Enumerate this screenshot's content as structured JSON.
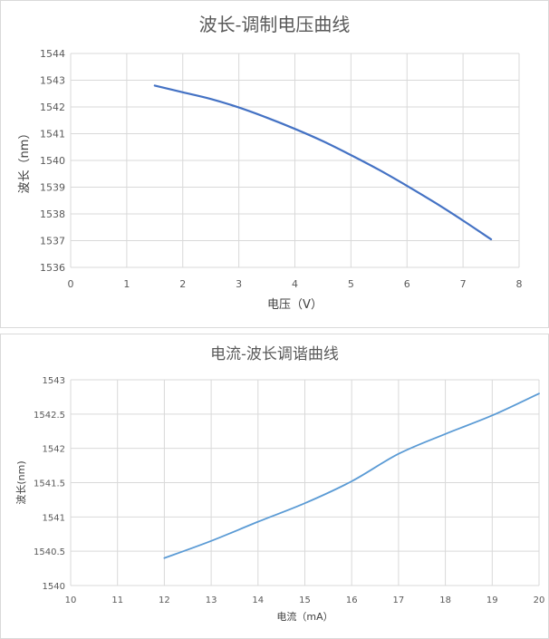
{
  "colors": {
    "line1": "#4472c4",
    "line2": "#5b9bd5",
    "grid": "#d9d9d9",
    "text": "#595959"
  },
  "chart_data": [
    {
      "type": "line",
      "title": "波长-调制电压曲线",
      "xlabel": "电压（V）",
      "ylabel": "波长（nm）",
      "xlim": [
        0,
        8
      ],
      "ylim": [
        1536,
        1544
      ],
      "x_ticks": [
        "0",
        "1",
        "2",
        "3",
        "4",
        "5",
        "6",
        "7",
        "8"
      ],
      "y_ticks": [
        "1536",
        "1537",
        "1538",
        "1539",
        "1540",
        "1541",
        "1542",
        "1543",
        "1544"
      ],
      "grid": "vertical and horizontal",
      "legend": "none",
      "series": [
        {
          "x": [
            1.5,
            2,
            2.5,
            3,
            3.5,
            4,
            4.5,
            5,
            5.5,
            6,
            6.5,
            7,
            7.5
          ],
          "values": [
            1542.8,
            1542.55,
            1542.3,
            1541.98,
            1541.6,
            1541.18,
            1540.72,
            1540.2,
            1539.65,
            1539.05,
            1538.42,
            1537.75,
            1537.05
          ]
        }
      ]
    },
    {
      "type": "line",
      "title": "电流-波长调谐曲线",
      "xlabel": "电流（mA）",
      "ylabel": "波长(nm)",
      "xlim": [
        10,
        20
      ],
      "ylim": [
        1540,
        1543
      ],
      "x_ticks": [
        "10",
        "11",
        "12",
        "13",
        "14",
        "15",
        "16",
        "17",
        "18",
        "19",
        "20"
      ],
      "y_ticks": [
        "1540",
        "1540.5",
        "1541",
        "1541.5",
        "1542",
        "1542.5",
        "1543"
      ],
      "grid": "vertical and horizontal",
      "legend": "none",
      "series": [
        {
          "x": [
            12,
            13,
            14,
            15,
            16,
            17,
            18,
            19,
            20
          ],
          "values": [
            1540.4,
            1540.65,
            1540.93,
            1541.2,
            1541.52,
            1541.92,
            1542.21,
            1542.48,
            1542.8
          ]
        }
      ]
    }
  ]
}
